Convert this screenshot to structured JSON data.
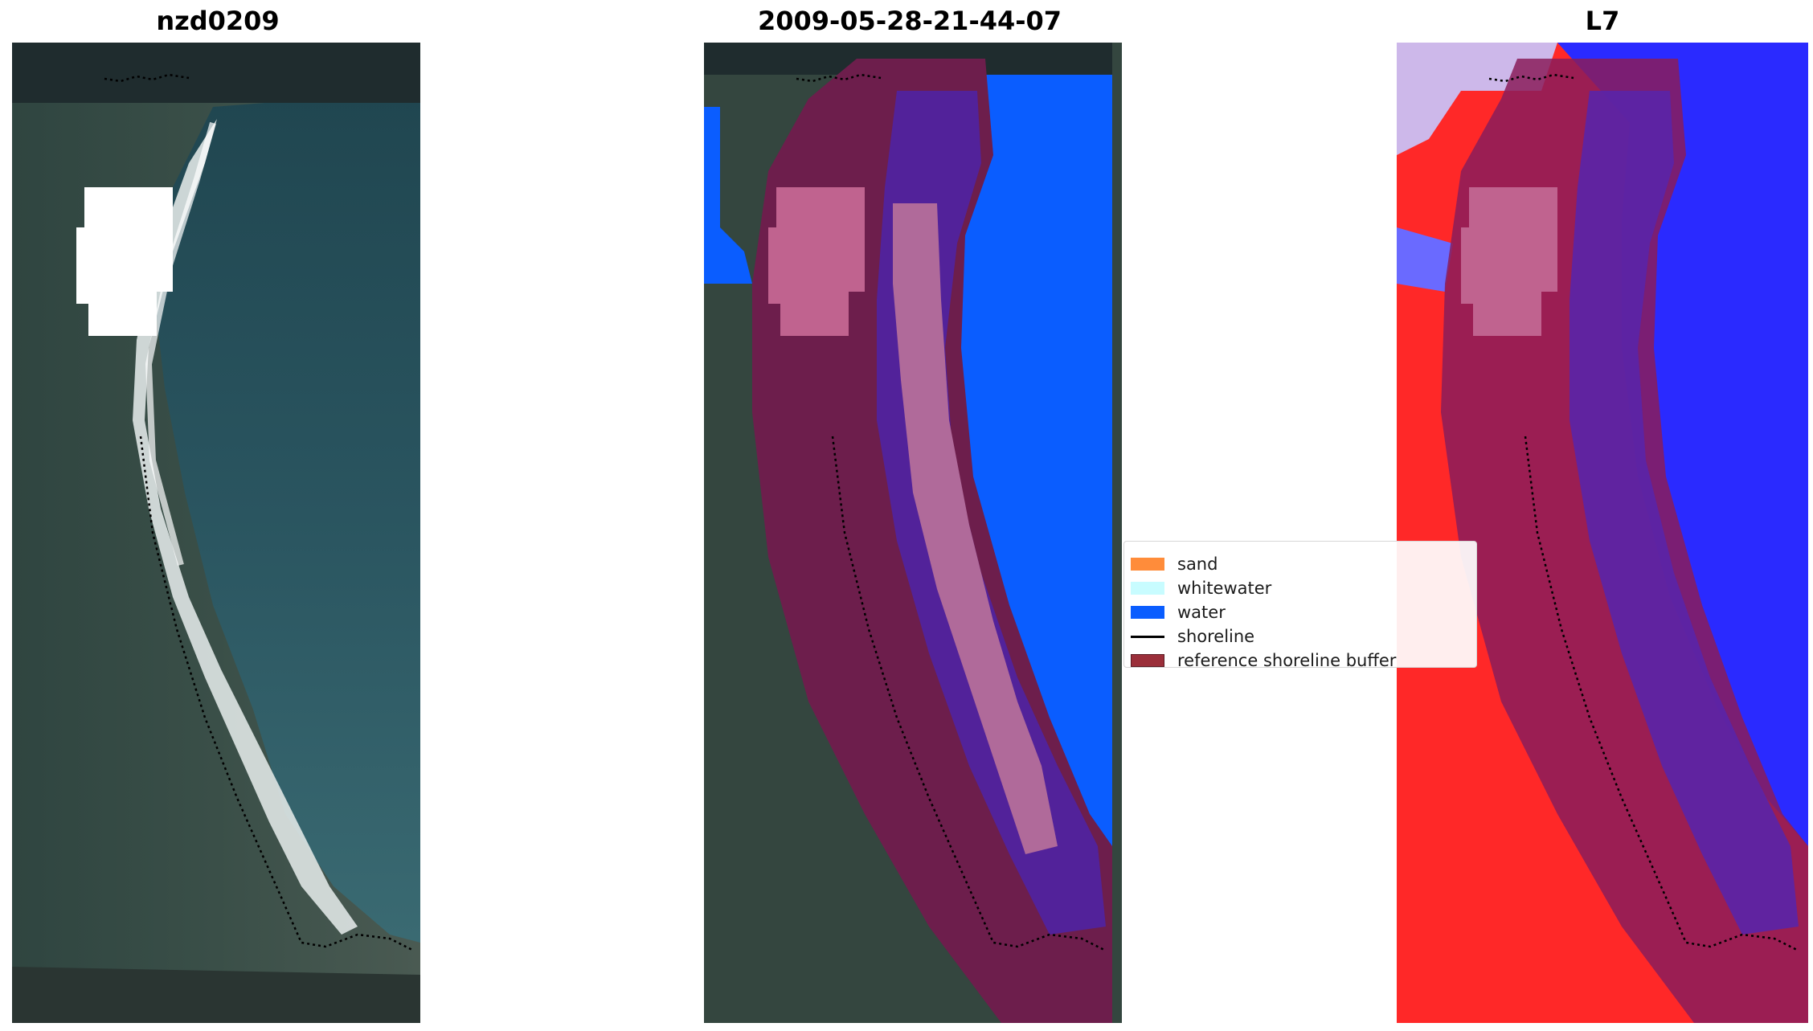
{
  "panels": [
    {
      "title": "nzd0209"
    },
    {
      "title": "2009-05-28-21-44-07"
    },
    {
      "title": "L7"
    }
  ],
  "legend": {
    "items": [
      {
        "label": "sand",
        "color": "#ff8c3a",
        "kind": "patch"
      },
      {
        "label": "whitewater",
        "color": "#c8fcff",
        "kind": "patch"
      },
      {
        "label": "water",
        "color": "#0a5dff",
        "kind": "patch"
      },
      {
        "label": "shoreline",
        "color": "#000000",
        "kind": "line"
      },
      {
        "label": "reference shoreline buffer",
        "color": "#9b2f3a",
        "kind": "patch"
      }
    ]
  },
  "colors": {
    "land_dark": "#2a3a36",
    "water_rgb": "#1f4a55",
    "surf_white": "#e6ecea",
    "cloud_mask": "#ffffff",
    "class_water": "#0a5dff",
    "buffer_overlay": "#7a1b4a",
    "buffer_water": "#52229a",
    "buffer_sand": "#b06a9a",
    "mask_pink": "#c0638f",
    "mndwi_land": "#ff2020",
    "mndwi_water": "#2a2aff"
  }
}
